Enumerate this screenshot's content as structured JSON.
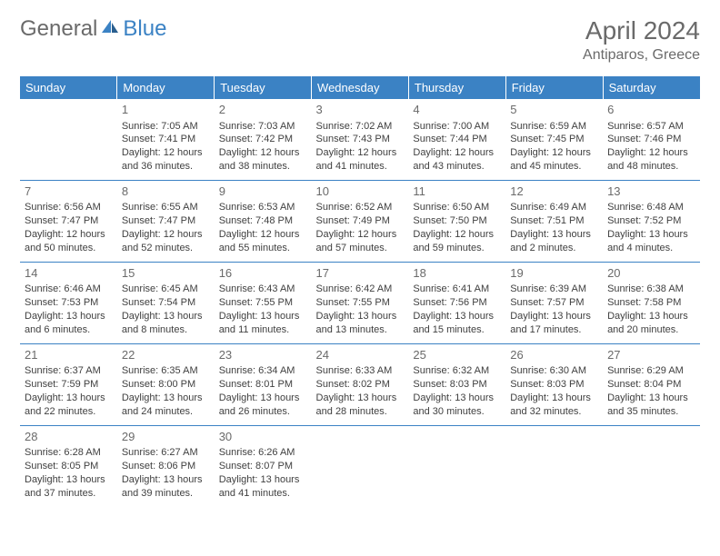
{
  "brand": {
    "part1": "General",
    "part2": "Blue"
  },
  "header": {
    "title": "April 2024",
    "location": "Antiparos, Greece"
  },
  "colors": {
    "accent": "#3b82c4",
    "text": "#404040",
    "muted": "#6a6a6a",
    "bg": "#ffffff"
  },
  "dayHeaders": [
    "Sunday",
    "Monday",
    "Tuesday",
    "Wednesday",
    "Thursday",
    "Friday",
    "Saturday"
  ],
  "weeks": [
    [
      null,
      {
        "n": "1",
        "sr": "Sunrise: 7:05 AM",
        "ss": "Sunset: 7:41 PM",
        "d1": "Daylight: 12 hours",
        "d2": "and 36 minutes."
      },
      {
        "n": "2",
        "sr": "Sunrise: 7:03 AM",
        "ss": "Sunset: 7:42 PM",
        "d1": "Daylight: 12 hours",
        "d2": "and 38 minutes."
      },
      {
        "n": "3",
        "sr": "Sunrise: 7:02 AM",
        "ss": "Sunset: 7:43 PM",
        "d1": "Daylight: 12 hours",
        "d2": "and 41 minutes."
      },
      {
        "n": "4",
        "sr": "Sunrise: 7:00 AM",
        "ss": "Sunset: 7:44 PM",
        "d1": "Daylight: 12 hours",
        "d2": "and 43 minutes."
      },
      {
        "n": "5",
        "sr": "Sunrise: 6:59 AM",
        "ss": "Sunset: 7:45 PM",
        "d1": "Daylight: 12 hours",
        "d2": "and 45 minutes."
      },
      {
        "n": "6",
        "sr": "Sunrise: 6:57 AM",
        "ss": "Sunset: 7:46 PM",
        "d1": "Daylight: 12 hours",
        "d2": "and 48 minutes."
      }
    ],
    [
      {
        "n": "7",
        "sr": "Sunrise: 6:56 AM",
        "ss": "Sunset: 7:47 PM",
        "d1": "Daylight: 12 hours",
        "d2": "and 50 minutes."
      },
      {
        "n": "8",
        "sr": "Sunrise: 6:55 AM",
        "ss": "Sunset: 7:47 PM",
        "d1": "Daylight: 12 hours",
        "d2": "and 52 minutes."
      },
      {
        "n": "9",
        "sr": "Sunrise: 6:53 AM",
        "ss": "Sunset: 7:48 PM",
        "d1": "Daylight: 12 hours",
        "d2": "and 55 minutes."
      },
      {
        "n": "10",
        "sr": "Sunrise: 6:52 AM",
        "ss": "Sunset: 7:49 PM",
        "d1": "Daylight: 12 hours",
        "d2": "and 57 minutes."
      },
      {
        "n": "11",
        "sr": "Sunrise: 6:50 AM",
        "ss": "Sunset: 7:50 PM",
        "d1": "Daylight: 12 hours",
        "d2": "and 59 minutes."
      },
      {
        "n": "12",
        "sr": "Sunrise: 6:49 AM",
        "ss": "Sunset: 7:51 PM",
        "d1": "Daylight: 13 hours",
        "d2": "and 2 minutes."
      },
      {
        "n": "13",
        "sr": "Sunrise: 6:48 AM",
        "ss": "Sunset: 7:52 PM",
        "d1": "Daylight: 13 hours",
        "d2": "and 4 minutes."
      }
    ],
    [
      {
        "n": "14",
        "sr": "Sunrise: 6:46 AM",
        "ss": "Sunset: 7:53 PM",
        "d1": "Daylight: 13 hours",
        "d2": "and 6 minutes."
      },
      {
        "n": "15",
        "sr": "Sunrise: 6:45 AM",
        "ss": "Sunset: 7:54 PM",
        "d1": "Daylight: 13 hours",
        "d2": "and 8 minutes."
      },
      {
        "n": "16",
        "sr": "Sunrise: 6:43 AM",
        "ss": "Sunset: 7:55 PM",
        "d1": "Daylight: 13 hours",
        "d2": "and 11 minutes."
      },
      {
        "n": "17",
        "sr": "Sunrise: 6:42 AM",
        "ss": "Sunset: 7:55 PM",
        "d1": "Daylight: 13 hours",
        "d2": "and 13 minutes."
      },
      {
        "n": "18",
        "sr": "Sunrise: 6:41 AM",
        "ss": "Sunset: 7:56 PM",
        "d1": "Daylight: 13 hours",
        "d2": "and 15 minutes."
      },
      {
        "n": "19",
        "sr": "Sunrise: 6:39 AM",
        "ss": "Sunset: 7:57 PM",
        "d1": "Daylight: 13 hours",
        "d2": "and 17 minutes."
      },
      {
        "n": "20",
        "sr": "Sunrise: 6:38 AM",
        "ss": "Sunset: 7:58 PM",
        "d1": "Daylight: 13 hours",
        "d2": "and 20 minutes."
      }
    ],
    [
      {
        "n": "21",
        "sr": "Sunrise: 6:37 AM",
        "ss": "Sunset: 7:59 PM",
        "d1": "Daylight: 13 hours",
        "d2": "and 22 minutes."
      },
      {
        "n": "22",
        "sr": "Sunrise: 6:35 AM",
        "ss": "Sunset: 8:00 PM",
        "d1": "Daylight: 13 hours",
        "d2": "and 24 minutes."
      },
      {
        "n": "23",
        "sr": "Sunrise: 6:34 AM",
        "ss": "Sunset: 8:01 PM",
        "d1": "Daylight: 13 hours",
        "d2": "and 26 minutes."
      },
      {
        "n": "24",
        "sr": "Sunrise: 6:33 AM",
        "ss": "Sunset: 8:02 PM",
        "d1": "Daylight: 13 hours",
        "d2": "and 28 minutes."
      },
      {
        "n": "25",
        "sr": "Sunrise: 6:32 AM",
        "ss": "Sunset: 8:03 PM",
        "d1": "Daylight: 13 hours",
        "d2": "and 30 minutes."
      },
      {
        "n": "26",
        "sr": "Sunrise: 6:30 AM",
        "ss": "Sunset: 8:03 PM",
        "d1": "Daylight: 13 hours",
        "d2": "and 32 minutes."
      },
      {
        "n": "27",
        "sr": "Sunrise: 6:29 AM",
        "ss": "Sunset: 8:04 PM",
        "d1": "Daylight: 13 hours",
        "d2": "and 35 minutes."
      }
    ],
    [
      {
        "n": "28",
        "sr": "Sunrise: 6:28 AM",
        "ss": "Sunset: 8:05 PM",
        "d1": "Daylight: 13 hours",
        "d2": "and 37 minutes."
      },
      {
        "n": "29",
        "sr": "Sunrise: 6:27 AM",
        "ss": "Sunset: 8:06 PM",
        "d1": "Daylight: 13 hours",
        "d2": "and 39 minutes."
      },
      {
        "n": "30",
        "sr": "Sunrise: 6:26 AM",
        "ss": "Sunset: 8:07 PM",
        "d1": "Daylight: 13 hours",
        "d2": "and 41 minutes."
      },
      null,
      null,
      null,
      null
    ]
  ]
}
